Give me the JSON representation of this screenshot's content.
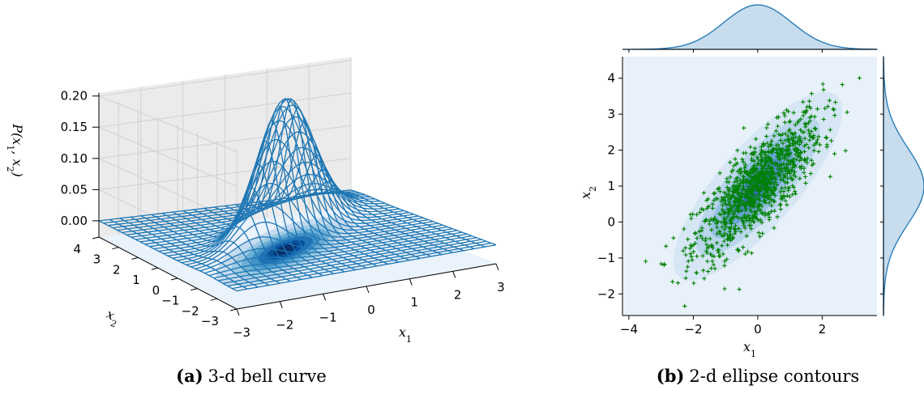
{
  "chart_data": [
    {
      "type": "surface3d",
      "caption_letter": "(a)",
      "caption_text": "3-d bell curve",
      "xlabel": "x1",
      "ylabel": "x2",
      "zlabel": "P(x1, x2)",
      "x_range": [
        -3,
        3
      ],
      "y_range": [
        -3,
        4
      ],
      "z_range": [
        0,
        0.2
      ],
      "x_ticks": [
        -3,
        -2,
        -1,
        0,
        1,
        2,
        3
      ],
      "y_ticks": [
        -3,
        -2,
        -1,
        0,
        1,
        2,
        3,
        4
      ],
      "z_ticks": [
        0.0,
        0.05,
        0.1,
        0.15,
        0.2
      ],
      "z_tick_labels": [
        "0.00",
        "0.05",
        "0.10",
        "0.15",
        "0.20"
      ],
      "x_tick_labels": [
        "−3",
        "−2",
        "−1",
        "0",
        "1",
        "2",
        "3"
      ],
      "y_tick_labels": [
        "−3",
        "−2",
        "−1",
        "0",
        "1",
        "2",
        "3",
        "4"
      ],
      "distribution": {
        "mean": [
          0,
          1
        ],
        "sd": [
          1,
          1
        ],
        "rho": 0.8,
        "peak_density": 0.2
      },
      "wire_color": "#1f77b4",
      "contour_palette": "Blues"
    },
    {
      "type": "scatter_kde_joint",
      "caption_letter": "(b)",
      "caption_text": "2-d ellipse contours",
      "xlabel": "x1",
      "ylabel": "x2",
      "x_range": [
        -4.2,
        3.7
      ],
      "y_range": [
        -2.6,
        4.6
      ],
      "x_ticks": [
        -4,
        -2,
        0,
        2
      ],
      "y_ticks": [
        -2,
        -1,
        0,
        1,
        2,
        3,
        4
      ],
      "x_tick_labels": [
        "−4",
        "−2",
        "0",
        "2"
      ],
      "y_tick_labels": [
        "−2",
        "−1",
        "0",
        "1",
        "2",
        "3",
        "4"
      ],
      "scatter": {
        "n_points": 1000,
        "mean": [
          0,
          1
        ],
        "sd": [
          1,
          1
        ],
        "rho": 0.8,
        "marker": "+",
        "color": "#008000"
      },
      "marginal_color": "#1f77b4",
      "background": "#e8f1fa"
    }
  ]
}
